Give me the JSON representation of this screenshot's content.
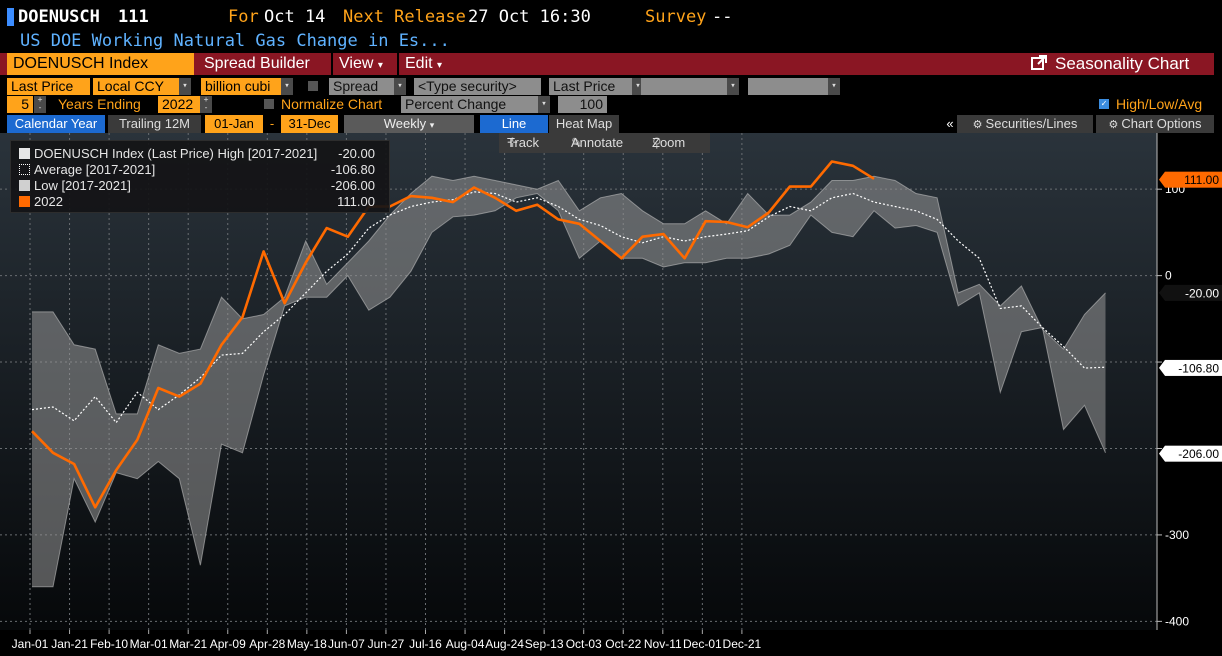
{
  "header": {
    "ticker": "DOENUSCH",
    "value": "111",
    "for_label": "For",
    "for_date": "Oct 14",
    "next_release_label": "Next Release",
    "next_release": "27 Oct 16:30",
    "survey_label": "Survey",
    "survey_value": "--",
    "description": "US DOE Working Natural Gas Change in Es..."
  },
  "toolbar": {
    "security": "DOENUSCH Index",
    "spread_builder": "Spread Builder",
    "view": "View",
    "edit": "Edit",
    "seasonality": "Seasonality Chart"
  },
  "controls": {
    "field": "Last Price",
    "currency": "Local CCY",
    "units": "billion cubi",
    "spread": "Spread",
    "type_security": "<Type security>",
    "field2": "Last Price",
    "years": "5",
    "years_ending_label": "Years Ending",
    "year_end": "2022",
    "normalize_label": "Normalize Chart",
    "normalize_mode": "Percent Change",
    "normalize_base": "100",
    "hla_label": "High/Low/Avg"
  },
  "tabs": {
    "calendar_year": "Calendar Year",
    "trailing": "Trailing 12M",
    "start": "01-Jan",
    "dash": "-",
    "end": "31-Dec",
    "weekly": "Weekly",
    "line": "Line",
    "heat_map": "Heat Map",
    "collapse": "«",
    "securities_lines": "Securities/Lines",
    "chart_options": "Chart Options"
  },
  "tools": {
    "track": "Track",
    "annotate": "Annotate",
    "zoom": "Zoom"
  },
  "legend": [
    {
      "label": "DOENUSCH Index (Last Price) High [2017-2021]",
      "value": "-20.00",
      "swatch": "#e6e6e6"
    },
    {
      "label": "Average  [2017-2021]",
      "value": "-106.80",
      "swatch": "dotted"
    },
    {
      "label": "Low  [2017-2021]",
      "value": "-206.00",
      "swatch": "#d0d0d0"
    },
    {
      "label": "2022",
      "value": "111.00",
      "swatch": "#ff6a00"
    }
  ],
  "colors": {
    "accent_orange": "#ffa31a",
    "line_2022": "#ff6a00",
    "toolbar_red": "#8a1623",
    "tab_blue": "#1c6ad1"
  },
  "chart_data": {
    "type": "line",
    "x_labels": [
      "Jan-01",
      "Jan-21",
      "Feb-10",
      "Mar-01",
      "Mar-21",
      "Apr-09",
      "Apr-28",
      "May-18",
      "Jun-07",
      "Jun-27",
      "Jul-16",
      "Aug-04",
      "Aug-24",
      "Sep-13",
      "Oct-03",
      "Oct-22",
      "Nov-11",
      "Dec-01",
      "Dec-21"
    ],
    "y_ticks": [
      100,
      0,
      -100,
      -200,
      -300,
      -400
    ],
    "y_tick_labels": [
      "100",
      "0",
      "",
      "",
      "-300",
      "-400"
    ],
    "ylim": [
      -410,
      165
    ],
    "markers": [
      {
        "value": 111,
        "label": "111.00",
        "style": "orange"
      },
      {
        "value": -20,
        "label": "-20.00",
        "style": "dark"
      },
      {
        "value": -106.8,
        "label": "-106.80",
        "style": "white"
      },
      {
        "value": -206,
        "label": "-206.00",
        "style": "white"
      }
    ],
    "week_x": [
      1,
      2,
      3,
      4,
      5,
      6,
      7,
      8,
      9,
      10,
      11,
      12,
      13,
      14,
      15,
      16,
      17,
      18,
      19,
      20,
      21,
      22,
      23,
      24,
      25,
      26,
      27,
      28,
      29,
      30,
      31,
      32,
      33,
      34,
      35,
      36,
      37,
      38,
      39,
      40,
      41,
      42,
      43,
      44,
      45,
      46,
      47,
      48,
      49,
      50,
      51,
      52
    ],
    "series": [
      {
        "name": "High [2017-2021]",
        "values": [
          -42,
          -42,
          -80,
          -85,
          -160,
          -160,
          -80,
          -90,
          -85,
          -25,
          -50,
          -45,
          -25,
          40,
          -10,
          15,
          40,
          70,
          95,
          115,
          110,
          115,
          110,
          105,
          100,
          110,
          75,
          90,
          95,
          75,
          60,
          60,
          75,
          60,
          95,
          70,
          70,
          85,
          110,
          110,
          115,
          110,
          95,
          90,
          -20,
          -10,
          -35,
          -12,
          -62,
          -85,
          -45,
          -20
        ]
      },
      {
        "name": "Average [2017-2021]",
        "values": [
          -155,
          -152,
          -168,
          -140,
          -170,
          -135,
          -155,
          -138,
          -118,
          -92,
          -90,
          -65,
          -45,
          -20,
          5,
          25,
          55,
          70,
          80,
          85,
          88,
          97,
          95,
          85,
          90,
          80,
          65,
          58,
          45,
          38,
          45,
          40,
          45,
          48,
          52,
          68,
          80,
          75,
          90,
          95,
          85,
          80,
          75,
          65,
          40,
          20,
          -38,
          -35,
          -60,
          -82,
          -107,
          -106
        ]
      },
      {
        "name": "Low [2017-2021]",
        "values": [
          -360,
          -360,
          -235,
          -285,
          -228,
          -235,
          -215,
          -235,
          -335,
          -195,
          -205,
          -115,
          -35,
          -25,
          -25,
          0,
          -40,
          -25,
          5,
          50,
          68,
          70,
          75,
          90,
          95,
          75,
          20,
          40,
          20,
          20,
          10,
          15,
          15,
          20,
          20,
          25,
          35,
          70,
          50,
          45,
          75,
          55,
          58,
          50,
          -35,
          -20,
          -135,
          -65,
          -60,
          -178,
          -150,
          -205
        ]
      },
      {
        "name": "2022",
        "values": [
          -180,
          -205,
          -218,
          -268,
          -225,
          -190,
          -130,
          -140,
          -125,
          -80,
          -48,
          28,
          -32,
          15,
          55,
          45,
          80,
          80,
          92,
          90,
          85,
          102,
          90,
          75,
          82,
          65,
          60,
          40,
          20,
          45,
          48,
          20,
          63,
          62,
          56,
          73,
          103,
          103,
          132,
          127,
          112
        ]
      }
    ]
  }
}
